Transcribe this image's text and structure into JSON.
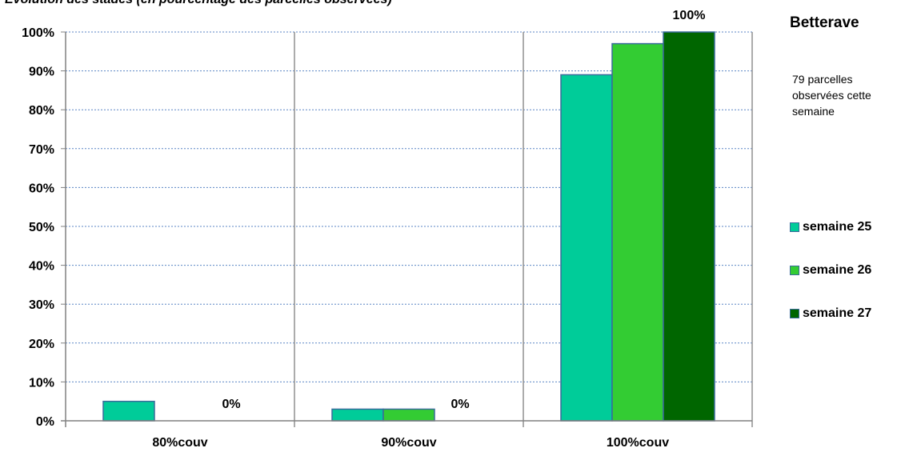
{
  "chart_data": {
    "type": "bar",
    "title": "Evolution des stades (en pourcentage des parcelles observées)",
    "categories": [
      "80%couv",
      "90%couv",
      "100%couv"
    ],
    "series": [
      {
        "name": "semaine 25",
        "color": "#00cc99",
        "values": [
          5,
          3,
          89
        ]
      },
      {
        "name": "semaine 26",
        "color": "#33cc33",
        "values": [
          0,
          3,
          97
        ]
      },
      {
        "name": "semaine 27",
        "color": "#006600",
        "values": [
          0,
          0,
          100
        ]
      }
    ],
    "ylim": [
      0,
      100
    ],
    "yticks": [
      "0%",
      "10%",
      "20%",
      "30%",
      "40%",
      "50%",
      "60%",
      "70%",
      "80%",
      "90%",
      "100%"
    ],
    "data_labels": [
      {
        "category": "80%couv",
        "series": "semaine 27",
        "text": "0%"
      },
      {
        "category": "90%couv",
        "series": "semaine 27",
        "text": "0%"
      },
      {
        "category": "100%couv",
        "series": "semaine 27",
        "text": "100%"
      }
    ],
    "grid": true,
    "legend_position": "right"
  },
  "side_panel": {
    "title": "Betterave",
    "note": "79 parcelles observées cette semaine"
  }
}
